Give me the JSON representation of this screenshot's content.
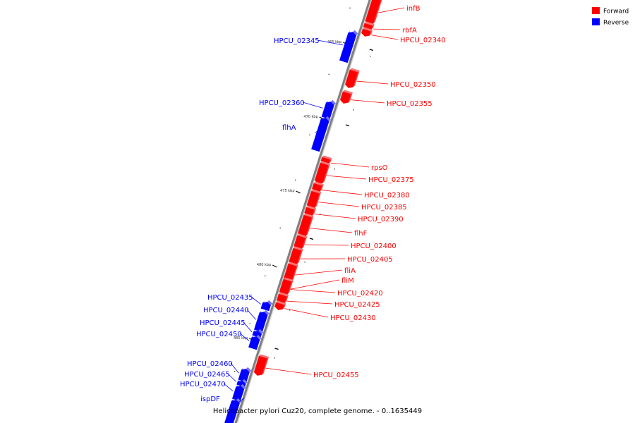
{
  "caption": "Helicobacter pylori Cuz20, complete genome. - 0..1635449",
  "legend": [
    {
      "label": "Forward",
      "color": "#ff0000"
    },
    {
      "label": "Reverse",
      "color": "#0000ff"
    }
  ],
  "colors": {
    "forward": "#ff0000",
    "reverse": "#0000ff",
    "backbone": "#808080"
  },
  "ticks": [
    "465 kbp",
    "470 kbp",
    "475 kbp",
    "480 kbp",
    "485 kbp"
  ],
  "genes": [
    {
      "label": "infB",
      "strand": "forward"
    },
    {
      "label": "rbfA",
      "strand": "forward"
    },
    {
      "label": "HPCU_02340",
      "strand": "forward"
    },
    {
      "label": "HPCU_02345",
      "strand": "reverse"
    },
    {
      "label": "HPCU_02350",
      "strand": "forward"
    },
    {
      "label": "HPCU_02355",
      "strand": "forward"
    },
    {
      "label": "HPCU_02360",
      "strand": "reverse"
    },
    {
      "label": "flhA",
      "strand": "reverse"
    },
    {
      "label": "rpsO",
      "strand": "forward"
    },
    {
      "label": "HPCU_02375",
      "strand": "forward"
    },
    {
      "label": "HPCU_02380",
      "strand": "forward"
    },
    {
      "label": "HPCU_02385",
      "strand": "forward"
    },
    {
      "label": "HPCU_02390",
      "strand": "forward"
    },
    {
      "label": "flhF",
      "strand": "forward"
    },
    {
      "label": "HPCU_02400",
      "strand": "forward"
    },
    {
      "label": "HPCU_02405",
      "strand": "forward"
    },
    {
      "label": "fliA",
      "strand": "forward"
    },
    {
      "label": "fliM",
      "strand": "forward"
    },
    {
      "label": "HPCU_02420",
      "strand": "forward"
    },
    {
      "label": "HPCU_02425",
      "strand": "forward"
    },
    {
      "label": "HPCU_02430",
      "strand": "forward"
    },
    {
      "label": "HPCU_02435",
      "strand": "reverse"
    },
    {
      "label": "HPCU_02440",
      "strand": "reverse"
    },
    {
      "label": "HPCU_02445",
      "strand": "reverse"
    },
    {
      "label": "HPCU_02450",
      "strand": "reverse"
    },
    {
      "label": "HPCU_02455",
      "strand": "forward"
    },
    {
      "label": "HPCU_02460",
      "strand": "reverse"
    },
    {
      "label": "HPCU_02465",
      "strand": "reverse"
    },
    {
      "label": "HPCU_02470",
      "strand": "reverse"
    },
    {
      "label": "ispDF",
      "strand": "reverse"
    }
  ]
}
